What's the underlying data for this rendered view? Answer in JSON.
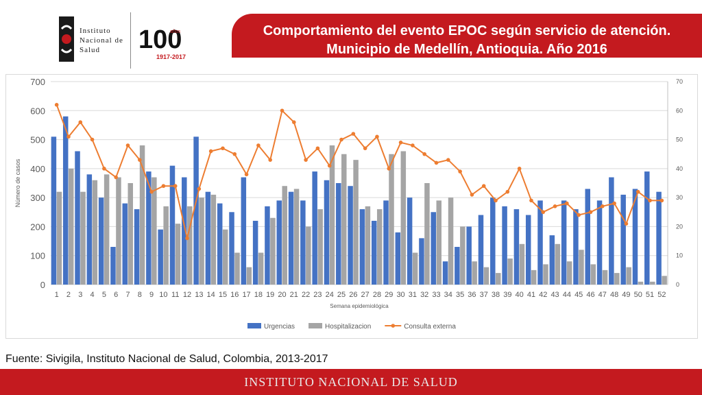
{
  "header": {
    "title_line1": "Comportamiento del evento EPOC según servicio de atención.",
    "title_line2": "Municipio de Medellín, Antioquia. Año 2016",
    "logo_text": "Instituto\nNacional de\nSalud",
    "anniversary_number": "100",
    "anniversary_word": "años",
    "anniversary_years": "1917-2017",
    "accent_color": "#c41a1f"
  },
  "source": "Fuente: Sivigila, Instituto Nacional de Salud, Colombia, 2013-2017",
  "footer": {
    "text": "INSTITUTO NACIONAL DE SALUD"
  },
  "chart_data": {
    "type": "bar",
    "xlabel": "Semana epidemiológica",
    "ylabel": "Número de casos",
    "ylim": [
      0,
      700
    ],
    "y2lim": [
      0,
      70
    ],
    "y_ticks": [
      "0",
      "100",
      "200",
      "300",
      "400",
      "500",
      "600",
      "700"
    ],
    "y2_ticks": [
      "0",
      "10",
      "20",
      "30",
      "40",
      "50",
      "60",
      "70"
    ],
    "grid": true,
    "legend_position": "bottom",
    "categories": [
      "1",
      "2",
      "3",
      "4",
      "5",
      "6",
      "7",
      "8",
      "9",
      "10",
      "11",
      "12",
      "13",
      "14",
      "15",
      "16",
      "17",
      "18",
      "19",
      "20",
      "21",
      "22",
      "23",
      "24",
      "25",
      "26",
      "27",
      "28",
      "29",
      "30",
      "31",
      "32",
      "33",
      "34",
      "35",
      "36",
      "37",
      "38",
      "39",
      "40",
      "41",
      "42",
      "43",
      "44",
      "45",
      "46",
      "47",
      "48",
      "49",
      "50",
      "51",
      "52"
    ],
    "series": [
      {
        "name": "Urgencias",
        "kind": "bar",
        "axis": "left",
        "color": "#4472c4",
        "values": [
          510,
          580,
          460,
          380,
          300,
          130,
          280,
          260,
          390,
          190,
          410,
          370,
          510,
          320,
          280,
          250,
          370,
          220,
          270,
          290,
          320,
          290,
          390,
          360,
          350,
          340,
          260,
          220,
          290,
          180,
          300,
          160,
          250,
          80,
          130,
          200,
          240,
          300,
          270,
          260,
          240,
          290,
          170,
          290,
          260,
          330,
          290,
          370,
          310,
          330,
          390,
          320
        ]
      },
      {
        "name": "Hospitalizacion",
        "kind": "bar",
        "axis": "left",
        "color": "#a5a5a5",
        "values": [
          320,
          400,
          320,
          360,
          380,
          370,
          350,
          480,
          370,
          270,
          210,
          270,
          300,
          310,
          190,
          110,
          60,
          110,
          230,
          340,
          330,
          200,
          260,
          480,
          450,
          430,
          270,
          260,
          450,
          460,
          110,
          350,
          290,
          300,
          200,
          80,
          60,
          40,
          90,
          140,
          50,
          70,
          140,
          80,
          120,
          70,
          50,
          40,
          60,
          10,
          10,
          30
        ]
      },
      {
        "name": "Consulta externa",
        "kind": "line",
        "axis": "right",
        "color": "#ed7d31",
        "values": [
          62,
          51,
          56,
          50,
          40,
          37,
          48,
          43,
          32,
          34,
          34,
          16,
          33,
          46,
          47,
          45,
          38,
          48,
          43,
          60,
          56,
          43,
          47,
          41,
          50,
          52,
          47,
          51,
          40,
          49,
          48,
          45,
          42,
          43,
          39,
          31,
          34,
          29,
          32,
          40,
          29,
          25,
          27,
          28,
          24,
          25,
          27,
          28,
          21,
          32,
          29,
          29
        ]
      }
    ]
  }
}
